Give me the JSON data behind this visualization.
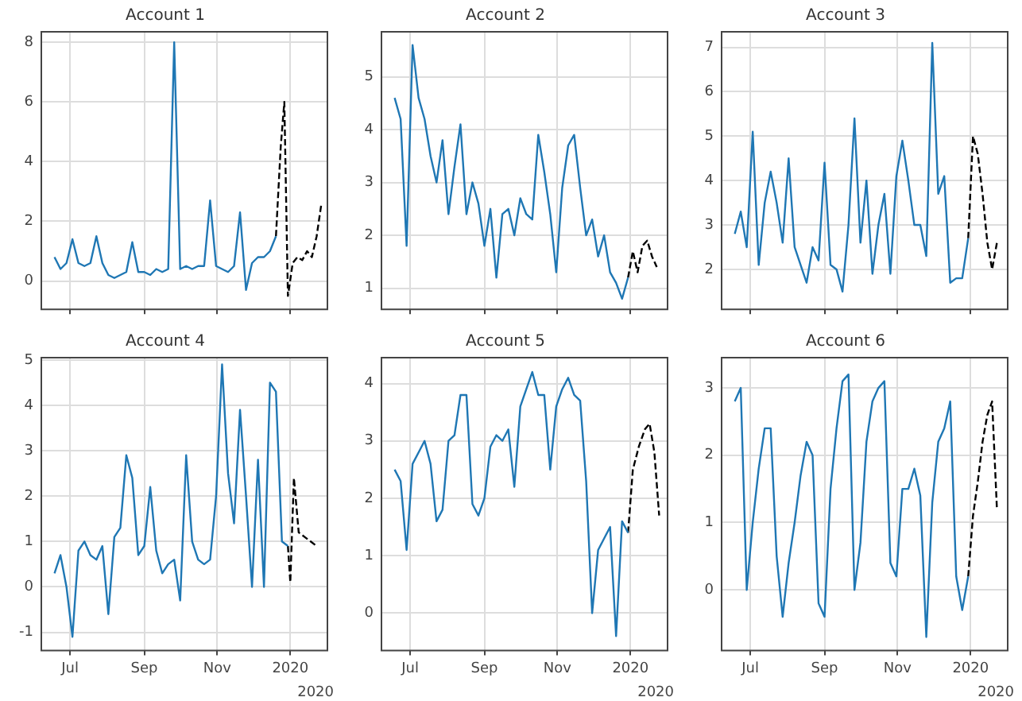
{
  "chart_data": [
    {
      "type": "line",
      "title": "Account 1",
      "grid": true,
      "tick_labels": "y",
      "x": [
        "2019-06-18",
        "2019-06-23",
        "2019-06-28",
        "2019-07-03",
        "2019-07-08",
        "2019-07-13",
        "2019-07-18",
        "2019-07-23",
        "2019-07-28",
        "2019-08-02",
        "2019-08-07",
        "2019-08-12",
        "2019-08-17",
        "2019-08-22",
        "2019-08-27",
        "2019-09-01",
        "2019-09-06",
        "2019-09-11",
        "2019-09-16",
        "2019-09-21",
        "2019-09-26",
        "2019-10-01",
        "2019-10-06",
        "2019-10-11",
        "2019-10-16",
        "2019-10-21",
        "2019-10-26",
        "2019-10-31",
        "2019-11-05",
        "2019-11-10",
        "2019-11-15",
        "2019-11-20",
        "2019-11-25",
        "2019-11-30",
        "2019-12-05",
        "2019-12-10",
        "2019-12-15",
        "2019-12-20"
      ],
      "xlim": [
        "2019-06-07",
        "2020-02-01"
      ],
      "xticks": [
        {
          "value": "2019-07-01",
          "label": null
        },
        {
          "value": "2019-09-01",
          "label": null
        },
        {
          "value": "2019-11-01",
          "label": null
        },
        {
          "value": "2020-01-01",
          "label": null
        }
      ],
      "ylim": [
        -0.95,
        8.35
      ],
      "yticks": [
        0,
        2,
        4,
        6,
        8
      ],
      "series": [
        {
          "color": "#1f77b4",
          "values": [
            0.8,
            0.4,
            0.6,
            1.4,
            0.6,
            0.5,
            0.6,
            1.5,
            0.6,
            0.2,
            0.1,
            0.2,
            0.3,
            1.3,
            0.3,
            0.3,
            0.2,
            0.4,
            0.3,
            0.4,
            8.0,
            0.4,
            0.5,
            0.4,
            0.5,
            0.5,
            2.7,
            0.5,
            0.4,
            0.3,
            0.5,
            2.3,
            -0.3,
            0.6,
            0.8,
            0.8,
            1.0,
            1.5
          ]
        },
        {
          "color": "#000000",
          "line_style": "dashed",
          "x": [
            "2019-12-20",
            "2019-12-24",
            "2019-12-27",
            "2019-12-30",
            "2020-01-03",
            "2020-01-07",
            "2020-01-11",
            "2020-01-15",
            "2020-01-19",
            "2020-01-23",
            "2020-01-27"
          ],
          "values": [
            1.5,
            4.5,
            6.0,
            -0.5,
            0.6,
            0.8,
            0.7,
            1.0,
            0.8,
            1.5,
            2.6
          ]
        }
      ]
    },
    {
      "type": "line",
      "title": "Account 2",
      "grid": true,
      "tick_labels": "y",
      "x": [
        "2019-06-18",
        "2019-06-23",
        "2019-06-28",
        "2019-07-03",
        "2019-07-08",
        "2019-07-13",
        "2019-07-18",
        "2019-07-23",
        "2019-07-28",
        "2019-08-02",
        "2019-08-07",
        "2019-08-12",
        "2019-08-17",
        "2019-08-22",
        "2019-08-27",
        "2019-09-01",
        "2019-09-06",
        "2019-09-11",
        "2019-09-16",
        "2019-09-21",
        "2019-09-26",
        "2019-10-01",
        "2019-10-06",
        "2019-10-11",
        "2019-10-16",
        "2019-10-21",
        "2019-10-26",
        "2019-10-31",
        "2019-11-05",
        "2019-11-10",
        "2019-11-15",
        "2019-11-20",
        "2019-11-25",
        "2019-11-30",
        "2019-12-05",
        "2019-12-10",
        "2019-12-15",
        "2019-12-20",
        "2019-12-25",
        "2019-12-30"
      ],
      "xlim": [
        "2019-06-07",
        "2020-02-01"
      ],
      "xticks": [
        {
          "value": "2019-07-01",
          "label": null
        },
        {
          "value": "2019-09-01",
          "label": null
        },
        {
          "value": "2019-11-01",
          "label": null
        },
        {
          "value": "2020-01-01",
          "label": null
        }
      ],
      "ylim": [
        0.6,
        5.85
      ],
      "yticks": [
        1,
        2,
        3,
        4,
        5
      ],
      "series": [
        {
          "color": "#1f77b4",
          "values": [
            4.6,
            4.2,
            1.8,
            5.6,
            4.6,
            4.2,
            3.5,
            3.0,
            3.8,
            2.4,
            3.3,
            4.1,
            2.4,
            3.0,
            2.6,
            1.8,
            2.5,
            1.2,
            2.4,
            2.5,
            2.0,
            2.7,
            2.4,
            2.3,
            3.9,
            3.2,
            2.4,
            1.3,
            2.9,
            3.7,
            3.9,
            2.9,
            2.0,
            2.3,
            1.6,
            2.0,
            1.3,
            1.1,
            0.8,
            1.2
          ]
        },
        {
          "color": "#000000",
          "line_style": "dashed",
          "x": [
            "2019-12-30",
            "2020-01-03",
            "2020-01-07",
            "2020-01-11",
            "2020-01-15",
            "2020-01-19",
            "2020-01-23"
          ],
          "values": [
            1.2,
            1.7,
            1.3,
            1.8,
            1.9,
            1.6,
            1.4
          ]
        }
      ]
    },
    {
      "type": "line",
      "title": "Account 3",
      "grid": true,
      "tick_labels": "y",
      "x": [
        "2019-06-18",
        "2019-06-23",
        "2019-06-28",
        "2019-07-03",
        "2019-07-08",
        "2019-07-13",
        "2019-07-18",
        "2019-07-23",
        "2019-07-28",
        "2019-08-02",
        "2019-08-07",
        "2019-08-12",
        "2019-08-17",
        "2019-08-22",
        "2019-08-27",
        "2019-09-01",
        "2019-09-06",
        "2019-09-11",
        "2019-09-16",
        "2019-09-21",
        "2019-09-26",
        "2019-10-01",
        "2019-10-06",
        "2019-10-11",
        "2019-10-16",
        "2019-10-21",
        "2019-10-26",
        "2019-10-31",
        "2019-11-05",
        "2019-11-10",
        "2019-11-15",
        "2019-11-20",
        "2019-11-25",
        "2019-11-30",
        "2019-12-05",
        "2019-12-10",
        "2019-12-15",
        "2019-12-20",
        "2019-12-25",
        "2019-12-30"
      ],
      "xlim": [
        "2019-06-07",
        "2020-02-01"
      ],
      "xticks": [
        {
          "value": "2019-07-01",
          "label": null
        },
        {
          "value": "2019-09-01",
          "label": null
        },
        {
          "value": "2019-11-01",
          "label": null
        },
        {
          "value": "2020-01-01",
          "label": null
        }
      ],
      "ylim": [
        1.1,
        7.35
      ],
      "yticks": [
        2,
        3,
        4,
        5,
        6,
        7
      ],
      "series": [
        {
          "color": "#1f77b4",
          "values": [
            2.8,
            3.3,
            2.5,
            5.1,
            2.1,
            3.5,
            4.2,
            3.5,
            2.6,
            4.5,
            2.5,
            2.1,
            1.7,
            2.5,
            2.2,
            4.4,
            2.1,
            2.0,
            1.5,
            3.0,
            5.4,
            2.6,
            4.0,
            1.9,
            3.0,
            3.7,
            1.9,
            4.1,
            4.9,
            4.0,
            3.0,
            3.0,
            2.3,
            7.1,
            3.7,
            4.1,
            1.7,
            1.8,
            1.8,
            2.7
          ]
        },
        {
          "color": "#000000",
          "line_style": "dashed",
          "x": [
            "2019-12-30",
            "2020-01-03",
            "2020-01-07",
            "2020-01-11",
            "2020-01-15",
            "2020-01-19",
            "2020-01-23"
          ],
          "values": [
            2.7,
            5.0,
            4.6,
            3.7,
            2.6,
            2.0,
            2.6
          ]
        }
      ]
    },
    {
      "type": "line",
      "title": "Account 4",
      "grid": true,
      "annotations": [
        "2020"
      ],
      "x": [
        "2019-06-18",
        "2019-06-23",
        "2019-06-28",
        "2019-07-03",
        "2019-07-08",
        "2019-07-13",
        "2019-07-18",
        "2019-07-23",
        "2019-07-28",
        "2019-08-02",
        "2019-08-07",
        "2019-08-12",
        "2019-08-17",
        "2019-08-22",
        "2019-08-27",
        "2019-09-01",
        "2019-09-06",
        "2019-09-11",
        "2019-09-16",
        "2019-09-21",
        "2019-09-26",
        "2019-10-01",
        "2019-10-06",
        "2019-10-11",
        "2019-10-16",
        "2019-10-21",
        "2019-10-26",
        "2019-10-31",
        "2019-11-05",
        "2019-11-10",
        "2019-11-15",
        "2019-11-20",
        "2019-11-25",
        "2019-11-30",
        "2019-12-05",
        "2019-12-10",
        "2019-12-15",
        "2019-12-20",
        "2019-12-25",
        "2019-12-30"
      ],
      "xlim": [
        "2019-06-07",
        "2020-02-01"
      ],
      "xticks": [
        {
          "value": "2019-07-01",
          "label": "Jul"
        },
        {
          "value": "2019-09-01",
          "label": "Sep"
        },
        {
          "value": "2019-11-01",
          "label": "Nov"
        },
        {
          "value": "2020-01-01",
          "label": "2020"
        }
      ],
      "ylim": [
        -1.4,
        5.05
      ],
      "yticks": [
        -1,
        0,
        1,
        2,
        3,
        4,
        5
      ],
      "series": [
        {
          "color": "#1f77b4",
          "values": [
            0.3,
            0.7,
            0.0,
            -1.1,
            0.8,
            1.0,
            0.7,
            0.6,
            0.9,
            -0.6,
            1.1,
            1.3,
            2.9,
            2.4,
            0.7,
            0.9,
            2.2,
            0.8,
            0.3,
            0.5,
            0.6,
            -0.3,
            2.9,
            1.0,
            0.6,
            0.5,
            0.6,
            2.0,
            4.9,
            2.5,
            1.4,
            3.9,
            2.0,
            0.0,
            2.8,
            0.0,
            4.5,
            4.3,
            1.0,
            0.9
          ]
        },
        {
          "color": "#000000",
          "line_style": "dashed",
          "x": [
            "2019-12-30",
            "2020-01-01",
            "2020-01-04",
            "2020-01-08",
            "2020-01-13",
            "2020-01-18",
            "2020-01-23"
          ],
          "values": [
            0.9,
            0.1,
            2.4,
            1.2,
            1.1,
            1.0,
            0.9
          ]
        }
      ]
    },
    {
      "type": "line",
      "title": "Account 5",
      "grid": true,
      "annotations": [
        "2020"
      ],
      "x": [
        "2019-06-18",
        "2019-06-23",
        "2019-06-28",
        "2019-07-03",
        "2019-07-08",
        "2019-07-13",
        "2019-07-18",
        "2019-07-23",
        "2019-07-28",
        "2019-08-02",
        "2019-08-07",
        "2019-08-12",
        "2019-08-17",
        "2019-08-22",
        "2019-08-27",
        "2019-09-01",
        "2019-09-06",
        "2019-09-11",
        "2019-09-16",
        "2019-09-21",
        "2019-09-26",
        "2019-10-01",
        "2019-10-06",
        "2019-10-11",
        "2019-10-16",
        "2019-10-21",
        "2019-10-26",
        "2019-10-31",
        "2019-11-05",
        "2019-11-10",
        "2019-11-15",
        "2019-11-20",
        "2019-11-25",
        "2019-11-30",
        "2019-12-05",
        "2019-12-10",
        "2019-12-15",
        "2019-12-20",
        "2019-12-25",
        "2019-12-30"
      ],
      "xlim": [
        "2019-06-07",
        "2020-02-01"
      ],
      "xticks": [
        {
          "value": "2019-07-01",
          "label": "Jul"
        },
        {
          "value": "2019-09-01",
          "label": "Sep"
        },
        {
          "value": "2019-11-01",
          "label": "Nov"
        },
        {
          "value": "2020-01-01",
          "label": "2020"
        }
      ],
      "ylim": [
        -0.65,
        4.45
      ],
      "yticks": [
        0,
        1,
        2,
        3,
        4
      ],
      "series": [
        {
          "color": "#1f77b4",
          "values": [
            2.5,
            2.3,
            1.1,
            2.6,
            2.8,
            3.0,
            2.6,
            1.6,
            1.8,
            3.0,
            3.1,
            3.8,
            3.8,
            1.9,
            1.7,
            2.0,
            2.9,
            3.1,
            3.0,
            3.2,
            2.2,
            3.6,
            3.9,
            4.2,
            3.8,
            3.8,
            2.5,
            3.6,
            3.9,
            4.1,
            3.8,
            3.7,
            2.3,
            0.0,
            1.1,
            1.3,
            1.5,
            -0.4,
            1.6,
            1.4
          ]
        },
        {
          "color": "#000000",
          "line_style": "dashed",
          "x": [
            "2019-12-30",
            "2020-01-03",
            "2020-01-08",
            "2020-01-13",
            "2020-01-17",
            "2020-01-21",
            "2020-01-25"
          ],
          "values": [
            1.4,
            2.5,
            2.9,
            3.2,
            3.3,
            2.8,
            1.7
          ]
        }
      ]
    },
    {
      "type": "line",
      "title": "Account 6",
      "grid": true,
      "annotations": [
        "2020"
      ],
      "x": [
        "2019-06-18",
        "2019-06-23",
        "2019-06-28",
        "2019-07-03",
        "2019-07-08",
        "2019-07-13",
        "2019-07-18",
        "2019-07-23",
        "2019-07-28",
        "2019-08-02",
        "2019-08-07",
        "2019-08-12",
        "2019-08-17",
        "2019-08-22",
        "2019-08-27",
        "2019-09-01",
        "2019-09-06",
        "2019-09-11",
        "2019-09-16",
        "2019-09-21",
        "2019-09-26",
        "2019-10-01",
        "2019-10-06",
        "2019-10-11",
        "2019-10-16",
        "2019-10-21",
        "2019-10-26",
        "2019-10-31",
        "2019-11-05",
        "2019-11-10",
        "2019-11-15",
        "2019-11-20",
        "2019-11-25",
        "2019-11-30",
        "2019-12-05",
        "2019-12-10",
        "2019-12-15",
        "2019-12-20",
        "2019-12-25",
        "2019-12-30"
      ],
      "xlim": [
        "2019-06-07",
        "2020-02-01"
      ],
      "xticks": [
        {
          "value": "2019-07-01",
          "label": "Jul"
        },
        {
          "value": "2019-09-01",
          "label": "Sep"
        },
        {
          "value": "2019-11-01",
          "label": "Nov"
        },
        {
          "value": "2020-01-01",
          "label": "2020"
        }
      ],
      "ylim": [
        -0.9,
        3.45
      ],
      "yticks": [
        0,
        1,
        2,
        3
      ],
      "series": [
        {
          "color": "#1f77b4",
          "values": [
            2.8,
            3.0,
            0.0,
            1.0,
            1.8,
            2.4,
            2.4,
            0.5,
            -0.4,
            0.4,
            1.0,
            1.7,
            2.2,
            2.0,
            -0.2,
            -0.4,
            1.5,
            2.4,
            3.1,
            3.2,
            0.0,
            0.7,
            2.2,
            2.8,
            3.0,
            3.1,
            0.4,
            0.2,
            1.5,
            1.5,
            1.8,
            1.4,
            -0.7,
            1.3,
            2.2,
            2.4,
            2.8,
            0.2,
            -0.3,
            0.2
          ]
        },
        {
          "color": "#000000",
          "line_style": "dashed",
          "x": [
            "2019-12-30",
            "2020-01-03",
            "2020-01-07",
            "2020-01-11",
            "2020-01-15",
            "2020-01-19",
            "2020-01-23"
          ],
          "values": [
            0.2,
            1.1,
            1.6,
            2.2,
            2.6,
            2.8,
            1.2
          ]
        }
      ]
    }
  ]
}
